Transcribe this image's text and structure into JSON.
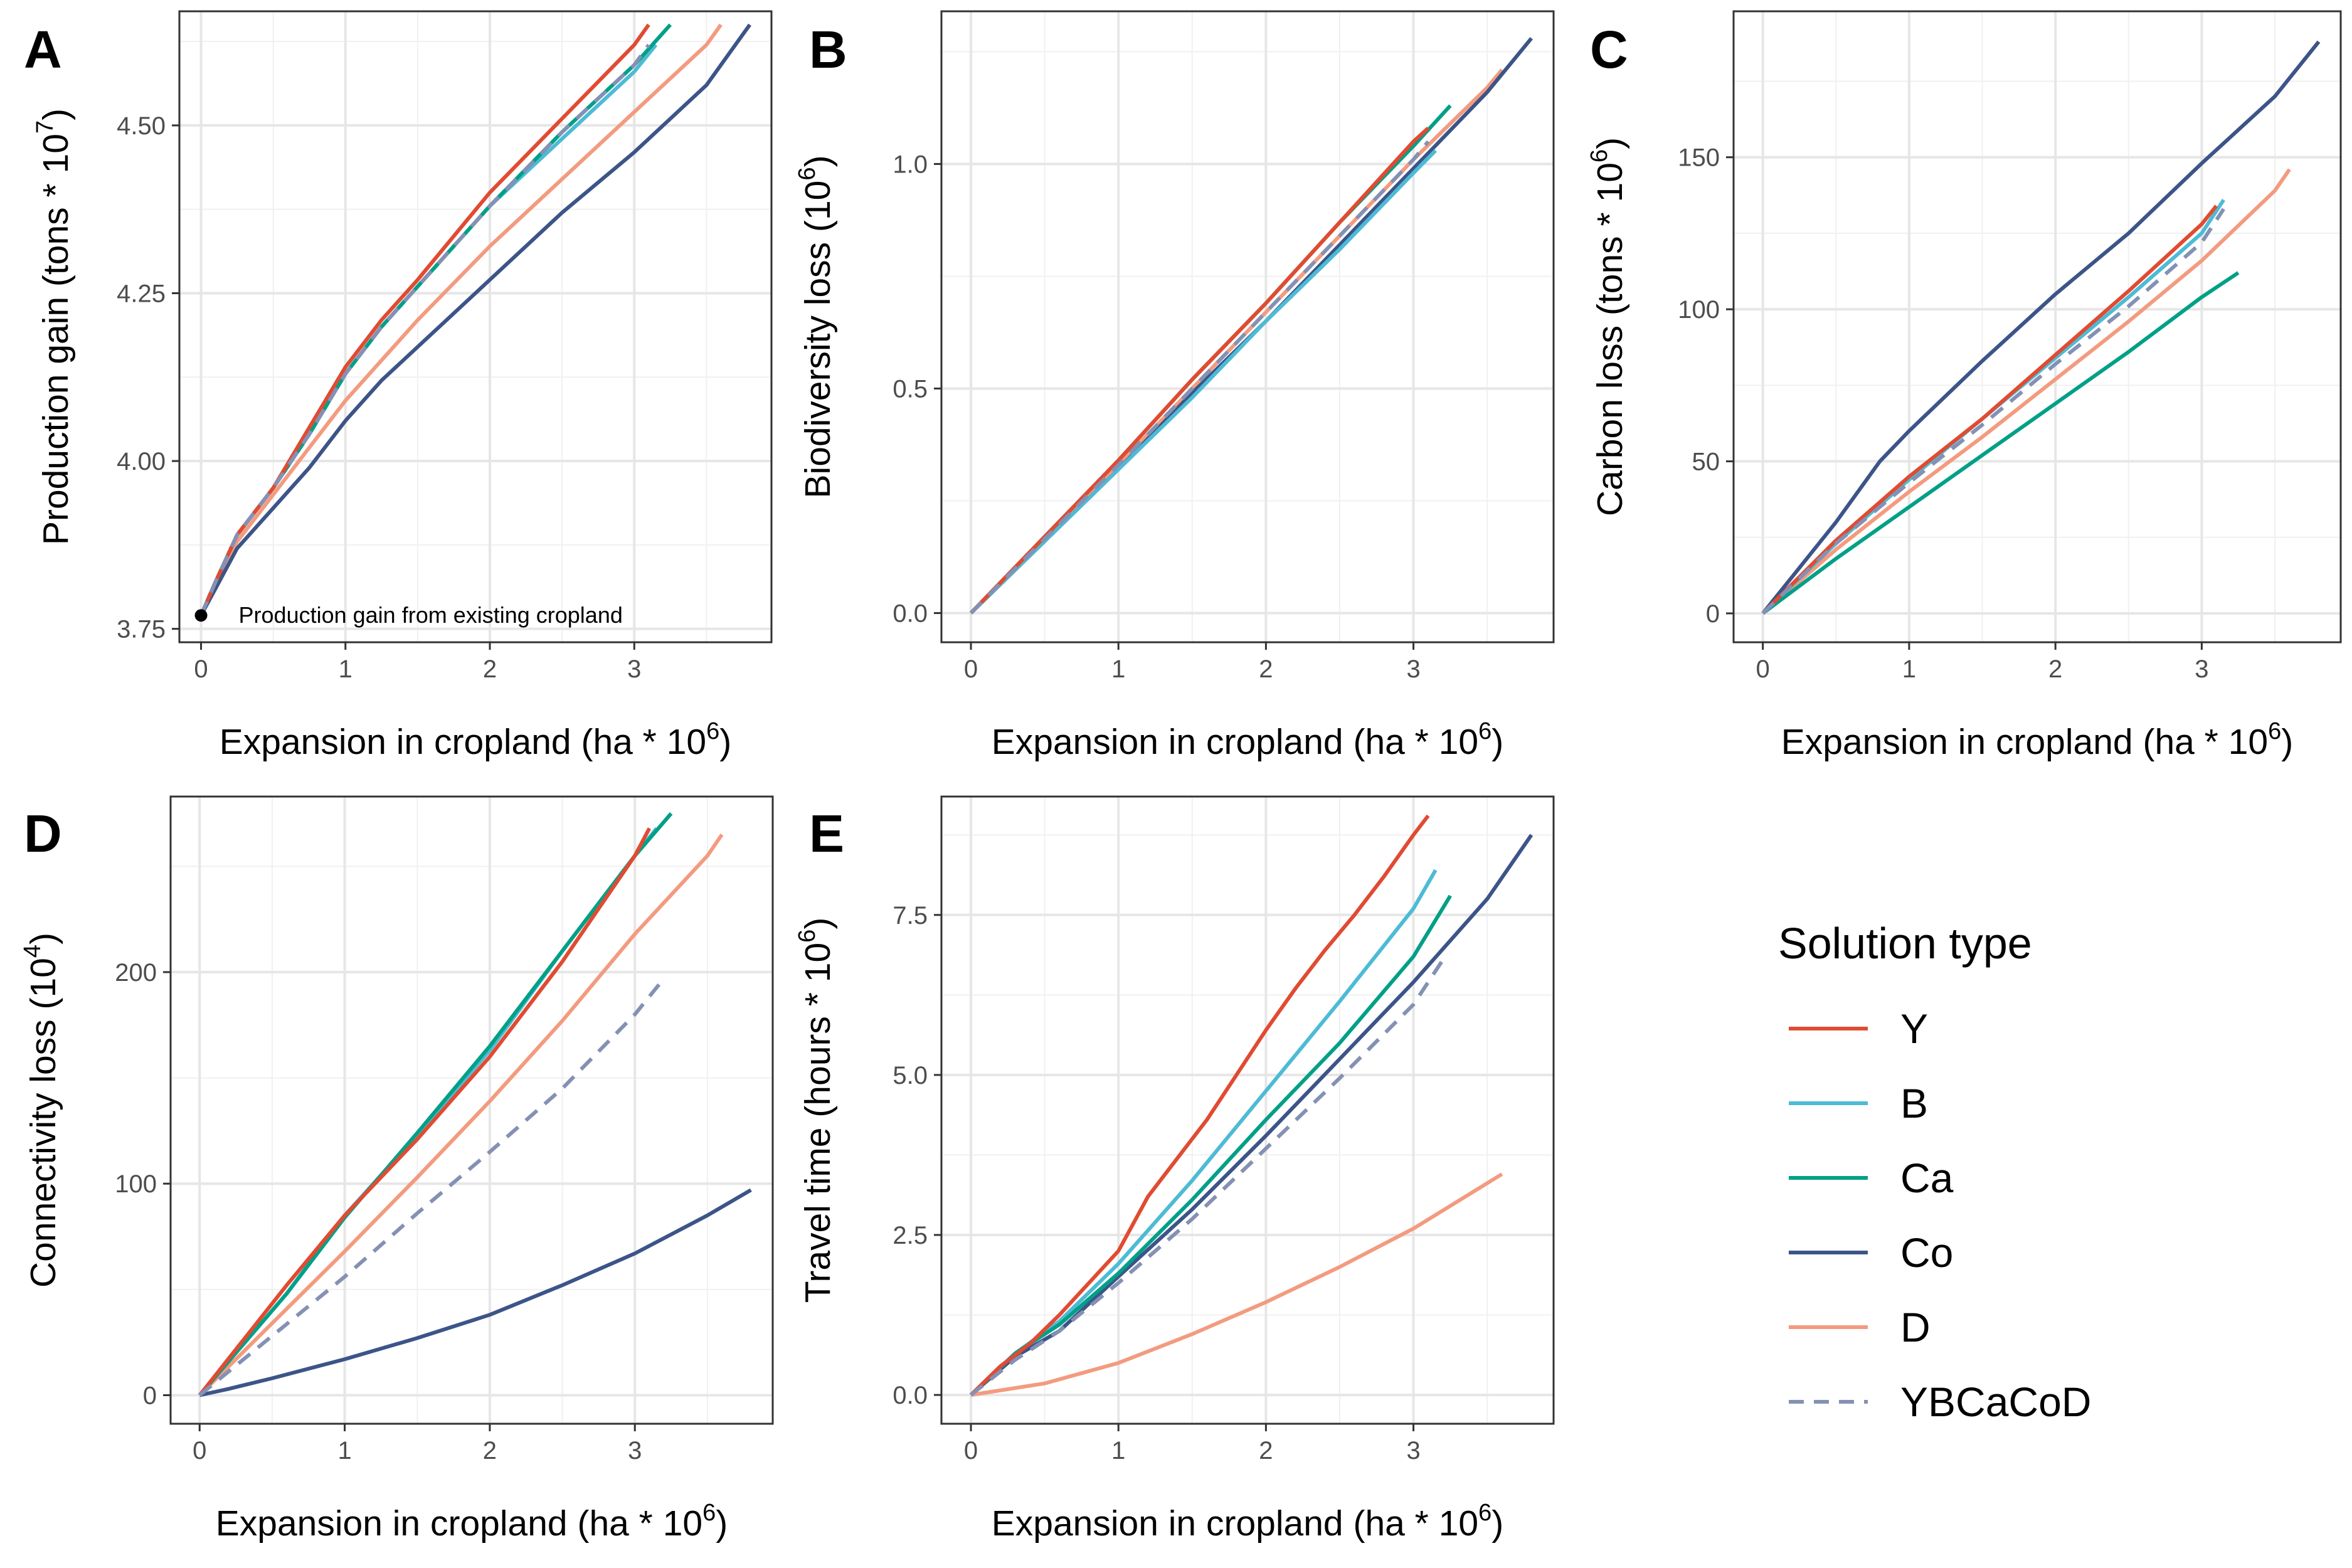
{
  "colors": {
    "Y": "#E04B32",
    "B": "#4DBBD5",
    "Ca": "#00A087",
    "Co": "#3C5488",
    "D": "#F39B7F",
    "YBCaCoD": "#8491B4"
  },
  "legend": {
    "title": "Solution type",
    "items": [
      {
        "key": "Y",
        "label": "Y",
        "dash": false
      },
      {
        "key": "B",
        "label": "B",
        "dash": false
      },
      {
        "key": "Ca",
        "label": "Ca",
        "dash": false
      },
      {
        "key": "Co",
        "label": "Co",
        "dash": false
      },
      {
        "key": "D",
        "label": "D",
        "dash": false
      },
      {
        "key": "YBCaCoD",
        "label": "YBCaCoD",
        "dash": true
      }
    ]
  },
  "chart_data": [
    {
      "id": "A",
      "tag": "A",
      "type": "line",
      "xlabel": "Expansion in cropland (ha * 10",
      "xlabel_sup": "6",
      "xlabel_tail": ")",
      "ylabel": "Production gain (tons * 10",
      "ylabel_sup": "7",
      "ylabel_tail": ")",
      "xlim": [
        -0.15,
        3.95
      ],
      "ylim": [
        3.73,
        4.67
      ],
      "xticks": [
        0,
        1,
        2,
        3
      ],
      "xtick_labels": [
        "0",
        "1",
        "2",
        "3"
      ],
      "yticks": [
        3.75,
        4.0,
        4.25,
        4.5
      ],
      "ytick_labels": [
        "3.75",
        "4.00",
        "4.25",
        "4.50"
      ],
      "point": {
        "x": 0,
        "y": 3.77
      },
      "annotation": "Production gain from existing cropland",
      "series": [
        {
          "name": "Y",
          "x": [
            0,
            0.1,
            0.25,
            0.5,
            0.75,
            1.0,
            1.25,
            1.5,
            2.0,
            2.5,
            3.0,
            3.1
          ],
          "y": [
            3.77,
            3.82,
            3.89,
            3.96,
            4.05,
            4.14,
            4.21,
            4.27,
            4.4,
            4.51,
            4.62,
            4.65
          ]
        },
        {
          "name": "B",
          "x": [
            0,
            0.1,
            0.25,
            0.5,
            0.75,
            1.0,
            1.25,
            1.5,
            2.0,
            2.5,
            3.0,
            3.15
          ],
          "y": [
            3.77,
            3.82,
            3.89,
            3.96,
            4.04,
            4.13,
            4.2,
            4.26,
            4.38,
            4.48,
            4.58,
            4.62
          ]
        },
        {
          "name": "Ca",
          "x": [
            0,
            0.1,
            0.25,
            0.5,
            0.75,
            1.0,
            1.25,
            1.5,
            2.0,
            2.5,
            3.0,
            3.25
          ],
          "y": [
            3.77,
            3.82,
            3.89,
            3.96,
            4.04,
            4.13,
            4.2,
            4.26,
            4.38,
            4.49,
            4.59,
            4.65
          ]
        },
        {
          "name": "Co",
          "x": [
            0,
            0.1,
            0.25,
            0.5,
            0.75,
            1.0,
            1.25,
            1.5,
            2.0,
            2.5,
            3.0,
            3.5,
            3.8
          ],
          "y": [
            3.77,
            3.81,
            3.87,
            3.93,
            3.99,
            4.06,
            4.12,
            4.17,
            4.27,
            4.37,
            4.46,
            4.56,
            4.65
          ]
        },
        {
          "name": "D",
          "x": [
            0,
            0.1,
            0.25,
            0.5,
            0.75,
            1.0,
            1.25,
            1.5,
            2.0,
            2.5,
            3.0,
            3.5,
            3.6
          ],
          "y": [
            3.77,
            3.82,
            3.88,
            3.95,
            4.02,
            4.09,
            4.15,
            4.21,
            4.32,
            4.42,
            4.52,
            4.62,
            4.65
          ]
        },
        {
          "name": "YBCaCoD",
          "x": [
            0,
            0.1,
            0.25,
            0.5,
            0.75,
            1.0,
            1.25,
            1.5,
            2.0,
            2.5,
            3.0,
            3.1
          ],
          "y": [
            3.77,
            3.82,
            3.89,
            3.96,
            4.04,
            4.13,
            4.2,
            4.26,
            4.38,
            4.49,
            4.59,
            4.62
          ]
        }
      ]
    },
    {
      "id": "B",
      "tag": "B",
      "type": "line",
      "xlabel": "Expansion in cropland (ha * 10",
      "xlabel_sup": "6",
      "xlabel_tail": ")",
      "ylabel": "Biodiversity loss (10",
      "ylabel_sup": "6",
      "ylabel_tail": ")",
      "xlim": [
        -0.2,
        3.95
      ],
      "ylim": [
        -0.065,
        1.34
      ],
      "xticks": [
        0,
        1,
        2,
        3
      ],
      "xtick_labels": [
        "0",
        "1",
        "2",
        "3"
      ],
      "yticks": [
        0,
        0.5,
        1.0
      ],
      "ytick_labels": [
        "0.0",
        "0.5",
        "1.0"
      ],
      "series": [
        {
          "name": "Y",
          "x": [
            0,
            0.5,
            1.0,
            1.5,
            2.0,
            2.5,
            3.0,
            3.1
          ],
          "y": [
            0,
            0.17,
            0.34,
            0.52,
            0.69,
            0.87,
            1.05,
            1.08
          ]
        },
        {
          "name": "B",
          "x": [
            0,
            0.5,
            1.0,
            1.5,
            2.0,
            2.5,
            3.0,
            3.15
          ],
          "y": [
            0,
            0.16,
            0.32,
            0.48,
            0.65,
            0.81,
            0.98,
            1.03
          ]
        },
        {
          "name": "Ca",
          "x": [
            0,
            0.5,
            1.0,
            1.5,
            2.0,
            2.5,
            3.0,
            3.25
          ],
          "y": [
            0,
            0.17,
            0.34,
            0.52,
            0.69,
            0.87,
            1.04,
            1.13
          ]
        },
        {
          "name": "Co",
          "x": [
            0,
            0.5,
            1.0,
            1.5,
            2.0,
            2.5,
            3.0,
            3.5,
            3.8
          ],
          "y": [
            0,
            0.16,
            0.32,
            0.49,
            0.65,
            0.82,
            0.99,
            1.16,
            1.28
          ]
        },
        {
          "name": "D",
          "x": [
            0,
            0.5,
            1.0,
            1.5,
            2.0,
            2.5,
            3.0,
            3.5,
            3.6
          ],
          "y": [
            0,
            0.17,
            0.33,
            0.5,
            0.67,
            0.84,
            1.01,
            1.17,
            1.21
          ]
        },
        {
          "name": "YBCaCoD",
          "x": [
            0,
            0.5,
            1.0,
            1.5,
            2.0,
            2.5,
            3.0,
            3.1
          ],
          "y": [
            0,
            0.165,
            0.33,
            0.5,
            0.67,
            0.84,
            1.01,
            1.05
          ]
        }
      ]
    },
    {
      "id": "C",
      "tag": "C",
      "type": "line",
      "xlabel": "Expansion in cropland (ha * 10",
      "xlabel_sup": "6",
      "xlabel_tail": ")",
      "ylabel": "Carbon loss (tons * 10",
      "ylabel_sup": "6",
      "ylabel_tail": ")",
      "xlim": [
        -0.2,
        3.95
      ],
      "ylim": [
        -9.5,
        198
      ],
      "xticks": [
        0,
        1,
        2,
        3
      ],
      "xtick_labels": [
        "0",
        "1",
        "2",
        "3"
      ],
      "yticks": [
        0,
        50,
        100,
        150
      ],
      "ytick_labels": [
        "0",
        "50",
        "100",
        "150"
      ],
      "series": [
        {
          "name": "Y",
          "x": [
            0,
            0.5,
            1.0,
            1.5,
            2.0,
            2.5,
            3.0,
            3.1
          ],
          "y": [
            0,
            24,
            45,
            64,
            85,
            106,
            128,
            134
          ]
        },
        {
          "name": "B",
          "x": [
            0,
            0.5,
            1.0,
            1.5,
            2.0,
            2.5,
            3.0,
            3.15
          ],
          "y": [
            0,
            23,
            44,
            64,
            84,
            104,
            125,
            136
          ]
        },
        {
          "name": "Ca",
          "x": [
            0,
            0.5,
            1.0,
            1.5,
            2.0,
            2.5,
            3.0,
            3.25
          ],
          "y": [
            0,
            18,
            35,
            52,
            69,
            86,
            104,
            112
          ]
        },
        {
          "name": "Co",
          "x": [
            0,
            0.25,
            0.5,
            0.8,
            1.0,
            1.5,
            2.0,
            2.5,
            3.0,
            3.5,
            3.8
          ],
          "y": [
            0,
            15,
            30,
            50,
            60,
            83,
            105,
            125,
            148,
            170,
            188
          ]
        },
        {
          "name": "D",
          "x": [
            0,
            0.5,
            1.0,
            1.5,
            2.0,
            2.5,
            3.0,
            3.5,
            3.6
          ],
          "y": [
            0,
            21,
            40,
            58,
            77,
            96,
            116,
            139,
            146
          ]
        },
        {
          "name": "YBCaCoD",
          "x": [
            0,
            0.5,
            1.0,
            1.5,
            2.0,
            2.5,
            3.0,
            3.15
          ],
          "y": [
            0,
            23,
            43,
            62,
            82,
            101,
            122,
            133
          ]
        }
      ]
    },
    {
      "id": "D",
      "tag": "D",
      "type": "line",
      "xlabel": "Expansion in cropland (ha * 10",
      "xlabel_sup": "6",
      "xlabel_tail": ")",
      "ylabel": "Connectivity loss (10",
      "ylabel_sup": "4",
      "ylabel_tail": ")",
      "xlim": [
        -0.2,
        3.95
      ],
      "ylim": [
        -13.5,
        283
      ],
      "xticks": [
        0,
        1,
        2,
        3
      ],
      "xtick_labels": [
        "0",
        "1",
        "2",
        "3"
      ],
      "yticks": [
        0,
        100,
        200
      ],
      "ytick_labels": [
        "0",
        "100",
        "200"
      ],
      "series": [
        {
          "name": "Y",
          "x": [
            0,
            0.3,
            0.6,
            1.0,
            1.5,
            2.0,
            2.5,
            3.0,
            3.1
          ],
          "y": [
            0,
            26,
            52,
            85,
            121,
            160,
            205,
            255,
            268
          ]
        },
        {
          "name": "B",
          "x": [
            0,
            0.3,
            0.6,
            1.0,
            1.5,
            2.0,
            2.5,
            3.0,
            3.15
          ],
          "y": [
            0,
            24,
            48,
            85,
            123,
            163,
            210,
            255,
            268
          ]
        },
        {
          "name": "Ca",
          "x": [
            0,
            0.3,
            0.6,
            1.0,
            1.5,
            2.0,
            2.5,
            3.0,
            3.25
          ],
          "y": [
            0,
            24,
            48,
            84,
            124,
            165,
            210,
            255,
            275
          ]
        },
        {
          "name": "Co",
          "x": [
            0,
            0.2,
            0.5,
            1.0,
            1.5,
            2.0,
            2.5,
            3.0,
            3.5,
            3.8
          ],
          "y": [
            0,
            3,
            8,
            17,
            27,
            38,
            52,
            67,
            85,
            97
          ]
        },
        {
          "name": "D",
          "x": [
            0,
            0.5,
            1.0,
            1.5,
            2.0,
            2.5,
            3.0,
            3.5,
            3.6
          ],
          "y": [
            0,
            34,
            68,
            103,
            139,
            177,
            218,
            255,
            265
          ]
        },
        {
          "name": "YBCaCoD",
          "x": [
            0,
            0.5,
            1.0,
            1.5,
            2.0,
            2.5,
            3.0,
            3.2
          ],
          "y": [
            0,
            28,
            56,
            86,
            115,
            145,
            180,
            197
          ]
        }
      ]
    },
    {
      "id": "E",
      "tag": "E",
      "type": "line",
      "xlabel": "Expansion in cropland (ha * 10",
      "xlabel_sup": "6",
      "xlabel_tail": ")",
      "ylabel": "Travel time (hours * 10",
      "ylabel_sup": "6",
      "ylabel_tail": ")",
      "xlim": [
        -0.2,
        3.95
      ],
      "ylim": [
        -0.45,
        9.35
      ],
      "xticks": [
        0,
        1,
        2,
        3
      ],
      "xtick_labels": [
        "0",
        "1",
        "2",
        "3"
      ],
      "yticks": [
        0,
        2.5,
        5.0,
        7.5
      ],
      "ytick_labels": [
        "0.0",
        "2.5",
        "5.0",
        "7.5"
      ],
      "series": [
        {
          "name": "Y",
          "x": [
            0,
            0.2,
            0.4,
            0.6,
            0.8,
            1.0,
            1.2,
            1.4,
            1.6,
            1.8,
            2.0,
            2.2,
            2.4,
            2.6,
            2.8,
            3.0,
            3.1
          ],
          "y": [
            0,
            0.45,
            0.8,
            1.25,
            1.75,
            2.25,
            3.1,
            3.7,
            4.3,
            5.0,
            5.7,
            6.35,
            6.95,
            7.5,
            8.1,
            8.75,
            9.05
          ]
        },
        {
          "name": "B",
          "x": [
            0,
            0.3,
            0.6,
            1.0,
            1.5,
            2.0,
            2.5,
            3.0,
            3.15
          ],
          "y": [
            0,
            0.65,
            1.15,
            2.05,
            3.35,
            4.75,
            6.15,
            7.6,
            8.2
          ]
        },
        {
          "name": "Ca",
          "x": [
            0,
            0.3,
            0.6,
            1.0,
            1.5,
            2.0,
            2.5,
            3.0,
            3.25
          ],
          "y": [
            0,
            0.65,
            1.1,
            1.9,
            3.05,
            4.3,
            5.5,
            6.85,
            7.8
          ]
        },
        {
          "name": "Co",
          "x": [
            0,
            0.3,
            0.6,
            1.0,
            1.5,
            2.0,
            2.5,
            3.0,
            3.5,
            3.8
          ],
          "y": [
            0,
            0.6,
            1.0,
            1.85,
            2.9,
            4.05,
            5.25,
            6.45,
            7.75,
            8.75
          ]
        },
        {
          "name": "D",
          "x": [
            0,
            0.5,
            1.0,
            1.5,
            2.0,
            2.5,
            3.0,
            3.6
          ],
          "y": [
            0,
            0.18,
            0.5,
            0.95,
            1.45,
            2.0,
            2.6,
            3.45
          ]
        },
        {
          "name": "YBCaCoD",
          "x": [
            0,
            0.3,
            0.6,
            1.0,
            1.5,
            2.0,
            2.5,
            3.0,
            3.2
          ],
          "y": [
            0,
            0.55,
            1.0,
            1.75,
            2.75,
            3.85,
            4.95,
            6.1,
            6.8
          ]
        }
      ]
    }
  ]
}
